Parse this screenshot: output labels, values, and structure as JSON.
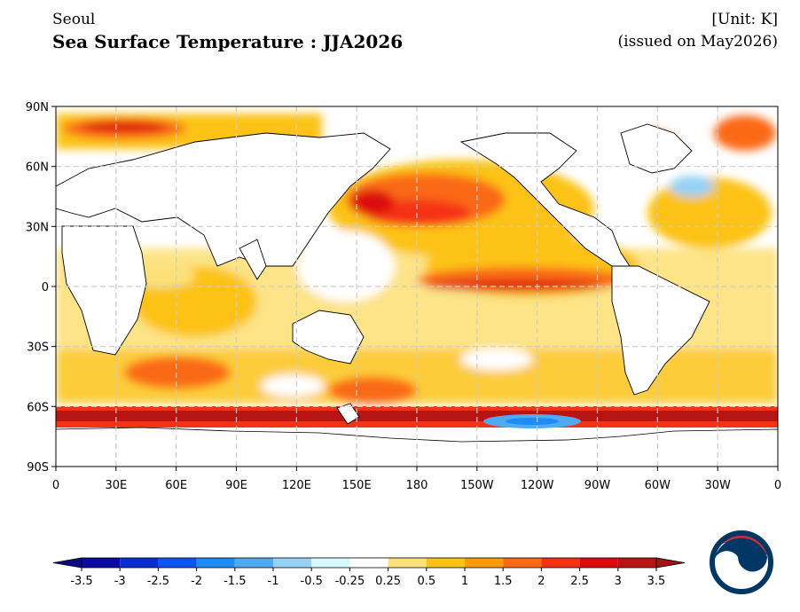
{
  "header": {
    "location": "Seoul",
    "title": "Sea Surface Temperature : JJA2026",
    "unit": "[Unit: K]",
    "issued": "(issued on May2026)"
  },
  "axes": {
    "lat_ticks": [
      "90N",
      "60N",
      "30N",
      "0",
      "30S",
      "60S",
      "90S"
    ],
    "lon_ticks": [
      "0",
      "30E",
      "60E",
      "90E",
      "120E",
      "150E",
      "180",
      "150W",
      "120W",
      "90W",
      "60W",
      "30W",
      "0"
    ]
  },
  "colorbar": {
    "labels": [
      "-3.5",
      "-3",
      "-2.5",
      "-2",
      "-1.5",
      "-1",
      "-0.5",
      "-0.25",
      "0.25",
      "0.5",
      "1",
      "1.5",
      "2",
      "2.5",
      "3",
      "3.5"
    ],
    "colors": [
      "#0a0aa0",
      "#0a2dd2",
      "#0a55f0",
      "#1e8cf5",
      "#50aaf0",
      "#96d2f5",
      "#d7f8fc",
      "#ffffff",
      "#fce17a",
      "#fcc314",
      "#fc9b0a",
      "#fa6914",
      "#f53214",
      "#dc0a0a",
      "#b91414"
    ],
    "under_color": "#0a0a82",
    "over_color": "#a01414"
  },
  "logo": {
    "name": "korea-government-emblem",
    "colors": [
      "#003764",
      "#cd2e3a"
    ]
  }
}
